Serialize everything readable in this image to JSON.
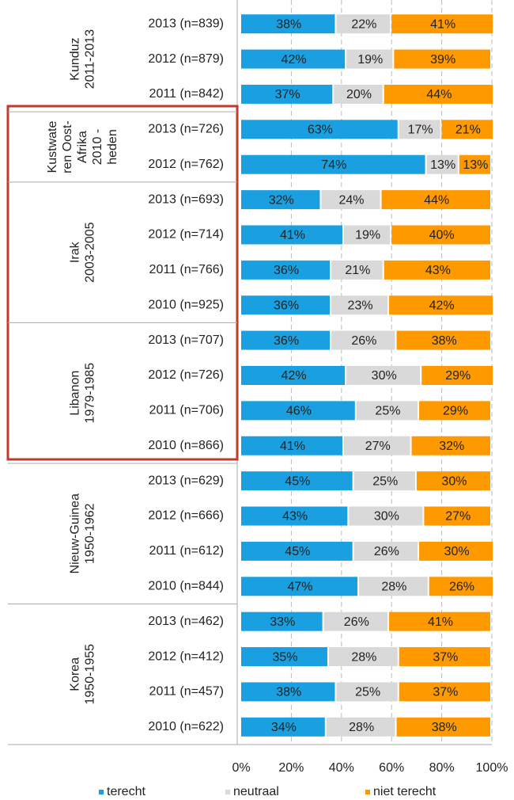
{
  "chart_data": {
    "type": "stacked-bar-horizontal",
    "groups": [
      {
        "lines": [
          "Kunduz",
          "2011-2013"
        ],
        "categories": [
          "2013 (n=839)",
          "2012 (n=879)",
          "2011 (n=842)"
        ]
      },
      {
        "lines": [
          "Kustwate",
          "ren Oost-",
          "Afrika",
          "2010 -",
          "heden"
        ],
        "categories": [
          "2013 (n=726)",
          "2012 (n=762)"
        ]
      },
      {
        "lines": [
          "Irak",
          "2003-2005"
        ],
        "categories": [
          "2013 (n=693)",
          "2012 (n=714)",
          "2011 (n=766)",
          "2010 (n=925)"
        ]
      },
      {
        "lines": [
          "Libanon",
          "1979-1985"
        ],
        "categories": [
          "2013 (n=707)",
          "2012 (n=726)",
          "2011 (n=706)",
          "2010 (n=866)"
        ]
      },
      {
        "lines": [
          "Nieuw-Guinea",
          "1950-1962"
        ],
        "categories": [
          "2013 (n=629)",
          "2012 (n=666)",
          "2011 (n=612)",
          "2010 (n=844)"
        ]
      },
      {
        "lines": [
          "Korea",
          "1950-1955"
        ],
        "categories": [
          "2013 (n=462)",
          "2012 (n=412)",
          "2011 (n=457)",
          "2010 (n=622)"
        ]
      }
    ],
    "series": [
      {
        "name": "terecht",
        "color": "#1aa0e0",
        "values": [
          38,
          42,
          37,
          63,
          74,
          32,
          41,
          36,
          36,
          36,
          42,
          46,
          41,
          45,
          43,
          45,
          47,
          33,
          35,
          38,
          34
        ],
        "value_labels": [
          "38%",
          "42%",
          "37%",
          "63%",
          "74%",
          "32%",
          "41%",
          "36%",
          "36%",
          "36%",
          "42%",
          "46%",
          "41%",
          "45%",
          "43%",
          "45%",
          "47%",
          "33%",
          "35%",
          "38%",
          "34%"
        ]
      },
      {
        "name": "neutraal",
        "color": "#d9d9d9",
        "values": [
          22,
          19,
          20,
          17,
          13,
          24,
          19,
          21,
          23,
          26,
          30,
          25,
          27,
          25,
          30,
          26,
          28,
          26,
          28,
          25,
          28
        ],
        "value_labels": [
          "22%",
          "19%",
          "20%",
          "17%",
          "13%",
          "24%",
          "19%",
          "21%",
          "23%",
          "26%",
          "30%",
          "25%",
          "27%",
          "25%",
          "30%",
          "26%",
          "28%",
          "26%",
          "28%",
          "25%",
          "28%"
        ]
      },
      {
        "name": "niet terecht",
        "color": "#ff9900",
        "values": [
          41,
          39,
          44,
          21,
          13,
          44,
          40,
          43,
          42,
          38,
          29,
          29,
          32,
          30,
          27,
          30,
          26,
          41,
          37,
          37,
          38
        ],
        "value_labels": [
          "41%",
          "39%",
          "44%",
          "21%",
          "13%",
          "44%",
          "40%",
          "43%",
          "42%",
          "38%",
          "29%",
          "29%",
          "32%",
          "30%",
          "27%",
          "30%",
          "26%",
          "41%",
          "37%",
          "37%",
          "38%"
        ]
      }
    ],
    "xlim": [
      0,
      100
    ],
    "xticks": [
      {
        "value": 0,
        "label": "0%"
      },
      {
        "value": 20,
        "label": "20%"
      },
      {
        "value": 40,
        "label": "40%"
      },
      {
        "value": 60,
        "label": "60%"
      },
      {
        "value": 80,
        "label": "80%"
      },
      {
        "value": 100,
        "label": "100%"
      }
    ],
    "grid": true,
    "legend": "bottom"
  }
}
